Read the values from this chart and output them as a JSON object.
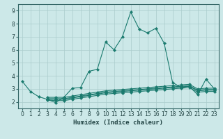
{
  "title": "",
  "xlabel": "Humidex (Indice chaleur)",
  "ylabel": "",
  "background_color": "#cce8e8",
  "grid_color": "#aacccc",
  "line_color": "#1a7a6e",
  "xlim": [
    -0.5,
    23.5
  ],
  "ylim": [
    1.5,
    9.5
  ],
  "xticks": [
    0,
    1,
    2,
    3,
    4,
    5,
    6,
    7,
    8,
    9,
    10,
    11,
    12,
    13,
    14,
    15,
    16,
    17,
    18,
    19,
    20,
    21,
    22,
    23
  ],
  "yticks": [
    2,
    3,
    4,
    5,
    6,
    7,
    8,
    9
  ],
  "series": [
    [
      3.6,
      2.8,
      2.4,
      2.2,
      1.95,
      2.35,
      3.05,
      3.1,
      4.35,
      4.5,
      6.6,
      6.0,
      7.0,
      8.9,
      7.6,
      7.3,
      7.65,
      6.5,
      3.5,
      3.1,
      3.2,
      2.55,
      3.75,
      3.0
    ],
    [
      null,
      null,
      null,
      2.35,
      2.35,
      2.35,
      2.45,
      2.55,
      2.65,
      2.75,
      2.85,
      2.9,
      2.95,
      3.0,
      3.05,
      3.1,
      3.15,
      3.2,
      3.25,
      3.3,
      3.35,
      3.0,
      3.05,
      3.05
    ],
    [
      null,
      null,
      null,
      2.25,
      2.25,
      2.25,
      2.35,
      2.45,
      2.55,
      2.65,
      2.75,
      2.8,
      2.85,
      2.9,
      2.95,
      3.0,
      3.05,
      3.1,
      3.15,
      3.2,
      3.25,
      2.9,
      2.95,
      2.95
    ],
    [
      null,
      null,
      null,
      2.2,
      2.2,
      2.2,
      2.3,
      2.4,
      2.5,
      2.6,
      2.7,
      2.75,
      2.8,
      2.85,
      2.9,
      2.95,
      3.0,
      3.05,
      3.1,
      3.15,
      3.2,
      2.85,
      2.9,
      2.9
    ],
    [
      null,
      null,
      null,
      2.15,
      2.1,
      2.1,
      2.2,
      2.3,
      2.4,
      2.5,
      2.6,
      2.65,
      2.7,
      2.75,
      2.8,
      2.85,
      2.9,
      2.95,
      3.0,
      3.05,
      3.1,
      2.75,
      2.8,
      2.8
    ]
  ]
}
